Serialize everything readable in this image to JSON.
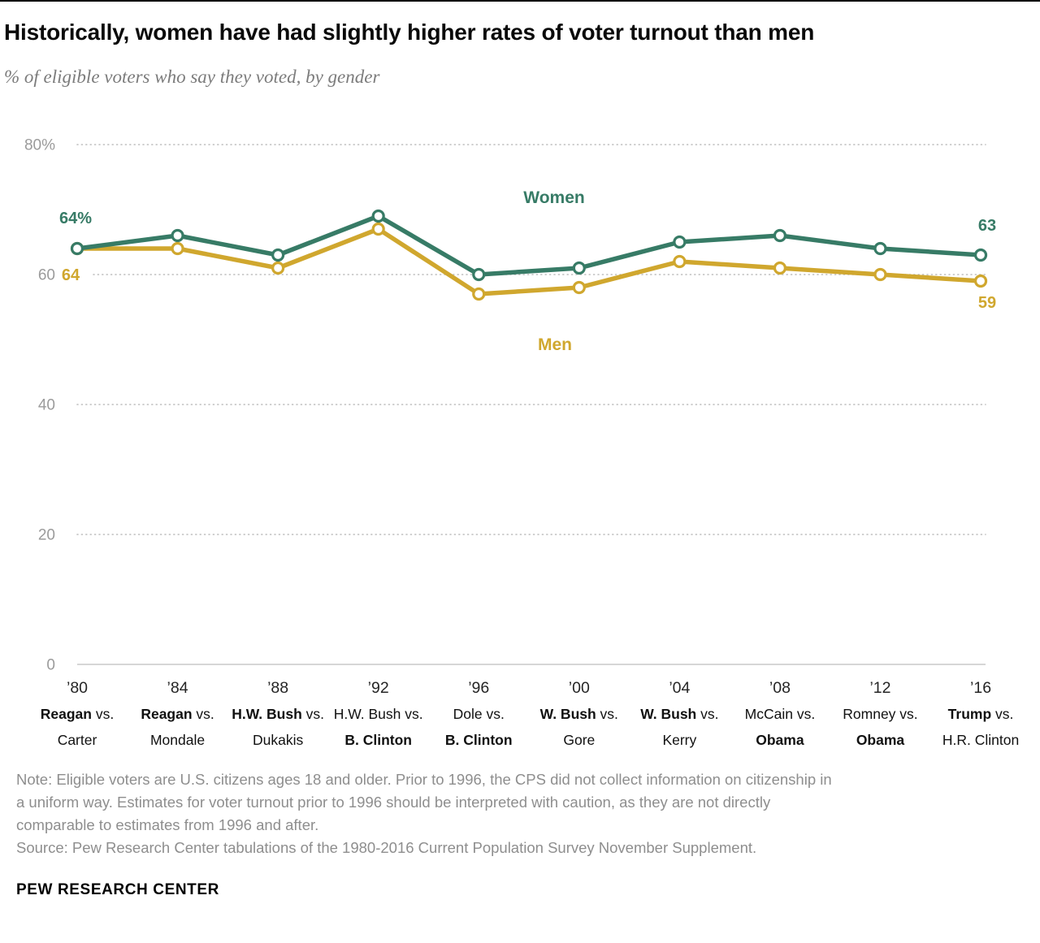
{
  "header": {
    "title": "Historically, women have had slightly higher rates of voter turnout than men",
    "subtitle": "% of eligible voters who say they voted, by gender"
  },
  "chart_data": {
    "type": "line",
    "ylim": [
      0,
      80
    ],
    "grid": "dotted horizontal",
    "legend": "inline labels",
    "y_ticks": [
      {
        "label": "80%",
        "value": 80
      },
      {
        "label": "60",
        "value": 60
      },
      {
        "label": "40",
        "value": 40
      },
      {
        "label": "20",
        "value": 20
      },
      {
        "label": "0",
        "value": 0
      }
    ],
    "vs_text": "vs.",
    "categories": [
      {
        "year": "’80",
        "candidate_1": "Reagan",
        "candidate_1_bold": true,
        "candidate_2": "Carter",
        "candidate_2_bold": false
      },
      {
        "year": "’84",
        "candidate_1": "Reagan",
        "candidate_1_bold": true,
        "candidate_2": "Mondale",
        "candidate_2_bold": false
      },
      {
        "year": "’88",
        "candidate_1": "H.W. Bush",
        "candidate_1_bold": true,
        "candidate_2": "Dukakis",
        "candidate_2_bold": false
      },
      {
        "year": "’92",
        "candidate_1": "H.W. Bush",
        "candidate_1_bold": false,
        "candidate_2": "B. Clinton",
        "candidate_2_bold": true
      },
      {
        "year": "’96",
        "candidate_1": "Dole",
        "candidate_1_bold": false,
        "candidate_2": "B. Clinton",
        "candidate_2_bold": true
      },
      {
        "year": "’00",
        "candidate_1": "W. Bush",
        "candidate_1_bold": true,
        "candidate_2": "Gore",
        "candidate_2_bold": false
      },
      {
        "year": "’04",
        "candidate_1": "W. Bush",
        "candidate_1_bold": true,
        "candidate_2": "Kerry",
        "candidate_2_bold": false
      },
      {
        "year": "’08",
        "candidate_1": "McCain",
        "candidate_1_bold": false,
        "candidate_2": "Obama",
        "candidate_2_bold": true
      },
      {
        "year": "’12",
        "candidate_1": "Romney",
        "candidate_1_bold": false,
        "candidate_2": "Obama",
        "candidate_2_bold": true
      },
      {
        "year": "’16",
        "candidate_1": "Trump",
        "candidate_1_bold": true,
        "candidate_2": "H.R. Clinton",
        "candidate_2_bold": false
      }
    ],
    "series": [
      {
        "name": "Women",
        "color": "#377B66",
        "values": [
          64,
          66,
          63,
          69,
          60,
          61,
          65,
          66,
          64,
          63
        ],
        "label_start": "64%",
        "label_end": "63"
      },
      {
        "name": "Men",
        "color": "#D0A72E",
        "values": [
          64,
          64,
          61,
          67,
          57,
          58,
          62,
          61,
          60,
          59
        ],
        "label_start": "64",
        "label_end": "59"
      }
    ]
  },
  "note": {
    "line1": "Note: Eligible voters are U.S. citizens ages 18 and older. Prior to 1996, the CPS did not collect information on citizenship in",
    "line2": "a uniform way. Estimates for voter turnout prior to 1996 should be interpreted with caution, as they are not directly",
    "line3": "comparable to estimates from 1996 and after.",
    "source": "Source: Pew Research Center tabulations of the 1980-2016 Current Population Survey November Supplement."
  },
  "footer": {
    "brand": "PEW RESEARCH CENTER"
  }
}
